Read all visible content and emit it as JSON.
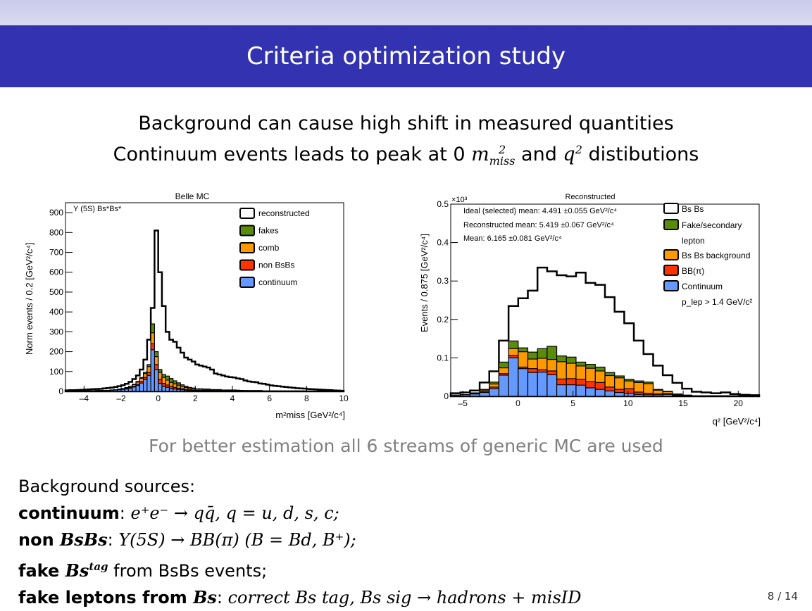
{
  "slide": {
    "title": "Criteria optimization study",
    "subtitle_line1": "Background can cause high shift in measured quantities",
    "subtitle_line2_a": "Continuum events leads to peak at 0 ",
    "subtitle_line2_math1": "m",
    "subtitle_line2_math1_sup": "2",
    "subtitle_line2_math1_sub": "miss",
    "subtitle_line2_b": " and ",
    "subtitle_line2_math2": "q",
    "subtitle_line2_math2_sup": "2",
    "subtitle_line2_c": " distibutions",
    "note": "For better estimation all 6 streams of generic MC are used",
    "page": "8 / 14",
    "background": {
      "heading": "Background sources:",
      "items": [
        {
          "label": "continuum",
          "text": "e⁺e⁻ → qq̄,  q = u, d, s, c;"
        },
        {
          "label": "non ",
          "label_math": "BsBs",
          "text": "Υ(5S) → BB(π) (B = Bd, B⁺);"
        },
        {
          "label": "fake ",
          "label_math": "Bs",
          "label_sup": "tag",
          "text": " from BsBs events;"
        },
        {
          "label": "fake leptons from ",
          "label_math": "Bs",
          "text": "correct Bs tag, Bs sig → hadrons + misID"
        }
      ]
    }
  },
  "chart_data": [
    {
      "type": "bar",
      "subtype": "stacked-histogram",
      "title": "Belle MC",
      "annotation": "Υ (5S) Bs*Bs*",
      "xlabel": "m²miss [GeV²/c⁴]",
      "ylabel": "Norm events / 0.2 [GeV²/c⁴]",
      "xlim": [
        -5,
        10
      ],
      "ylim": [
        0,
        950
      ],
      "bin_width": 0.2,
      "xticks": [
        -4,
        -2,
        0,
        2,
        4,
        6,
        8,
        10
      ],
      "yticks": [
        0,
        100,
        200,
        300,
        400,
        500,
        600,
        700,
        800,
        900
      ],
      "legend_position": "top-right",
      "legend": [
        "reconstructed",
        "fakes",
        "comb",
        "non BsBs",
        "continuum"
      ],
      "colors": {
        "reconstructed": "#ffffff",
        "fakes": "#5a8c0a",
        "comb": "#ff9900",
        "non BsBs": "#ff3300",
        "continuum": "#6699ff"
      },
      "bin_starts": [
        -5.0,
        -4.8,
        -4.6,
        -4.4,
        -4.2,
        -4.0,
        -3.8,
        -3.6,
        -3.4,
        -3.2,
        -3.0,
        -2.8,
        -2.6,
        -2.4,
        -2.2,
        -2.0,
        -1.8,
        -1.6,
        -1.4,
        -1.2,
        -1.0,
        -0.8,
        -0.6,
        -0.4,
        -0.2,
        0.0,
        0.2,
        0.4,
        0.6,
        0.8,
        1.0,
        1.2,
        1.4,
        1.6,
        1.8,
        2.0,
        2.2,
        2.4,
        2.6,
        2.8,
        3.0,
        3.2,
        3.4,
        3.6,
        3.8,
        4.0,
        4.2,
        4.4,
        4.6,
        4.8,
        5.0,
        5.2,
        5.4,
        5.6,
        5.8,
        6.0,
        6.2,
        6.4,
        6.6,
        6.8,
        7.0,
        7.2,
        7.4,
        7.6,
        7.8,
        8.0,
        8.2,
        8.4,
        8.6,
        8.8,
        9.0,
        9.2,
        9.4,
        9.6,
        9.8
      ],
      "series": [
        {
          "name": "continuum",
          "values": [
            2,
            2,
            2,
            2,
            3,
            3,
            3,
            3,
            4,
            4,
            5,
            5,
            6,
            7,
            8,
            10,
            12,
            16,
            22,
            30,
            42,
            60,
            80,
            210,
            110,
            40,
            25,
            20,
            15,
            12,
            10,
            8,
            6,
            5,
            4,
            3,
            3,
            3,
            3,
            2,
            2,
            2,
            2,
            2,
            2,
            2,
            1,
            1,
            1,
            1,
            1,
            1,
            1,
            1,
            1,
            1,
            1,
            1,
            1,
            1,
            1,
            1,
            1,
            1,
            1,
            1,
            1,
            1,
            1,
            1,
            0,
            0,
            0,
            0,
            0
          ]
        },
        {
          "name": "non BsBs",
          "values": [
            0,
            0,
            0,
            0,
            0,
            0,
            0,
            0,
            0,
            0,
            0,
            0,
            0,
            0,
            1,
            1,
            2,
            3,
            4,
            5,
            8,
            10,
            15,
            30,
            25,
            20,
            15,
            12,
            10,
            8,
            6,
            5,
            4,
            3,
            3,
            2,
            2,
            2,
            2,
            2,
            2,
            2,
            1,
            1,
            1,
            1,
            1,
            1,
            1,
            1,
            1,
            1,
            1,
            0,
            0,
            0,
            0,
            0,
            0,
            0,
            0,
            0,
            0,
            0,
            0,
            0,
            0,
            0,
            0,
            0,
            0,
            0,
            0,
            0,
            0
          ]
        },
        {
          "name": "comb",
          "values": [
            0,
            0,
            0,
            0,
            0,
            0,
            0,
            0,
            0,
            0,
            0,
            0,
            1,
            1,
            2,
            3,
            4,
            6,
            8,
            12,
            16,
            20,
            30,
            55,
            40,
            35,
            30,
            25,
            20,
            18,
            15,
            12,
            10,
            8,
            7,
            6,
            6,
            5,
            5,
            4,
            4,
            4,
            3,
            3,
            3,
            3,
            3,
            2,
            2,
            2,
            2,
            2,
            2,
            1,
            1,
            1,
            1,
            1,
            1,
            1,
            1,
            1,
            1,
            1,
            1,
            0,
            0,
            0,
            0,
            0,
            0,
            0,
            0,
            0,
            0,
            0
          ]
        },
        {
          "name": "fakes",
          "values": [
            0,
            0,
            0,
            0,
            0,
            0,
            0,
            0,
            0,
            0,
            0,
            0,
            0,
            0,
            0,
            0,
            1,
            1,
            2,
            3,
            4,
            6,
            10,
            45,
            25,
            15,
            15,
            20,
            20,
            15,
            12,
            8,
            6,
            4,
            3,
            2,
            2,
            2,
            2,
            1,
            1,
            1,
            1,
            1,
            1,
            1,
            1,
            1,
            0,
            0,
            0,
            0,
            0,
            0,
            0,
            0,
            0,
            0,
            0,
            0,
            0,
            0,
            0,
            0,
            0,
            0,
            0,
            0,
            0,
            0,
            0,
            0,
            0,
            0,
            0
          ]
        },
        {
          "name": "reconstructed",
          "values": [
            5,
            6,
            6,
            7,
            8,
            9,
            10,
            11,
            12,
            13,
            15,
            17,
            19,
            22,
            26,
            31,
            38,
            48,
            62,
            80,
            110,
            160,
            260,
            420,
            810,
            600,
            430,
            300,
            260,
            250,
            220,
            195,
            170,
            160,
            150,
            135,
            130,
            125,
            120,
            110,
            90,
            85,
            80,
            75,
            72,
            70,
            65,
            62,
            55,
            50,
            48,
            46,
            40,
            38,
            34,
            30,
            28,
            26,
            24,
            22,
            20,
            18,
            16,
            15,
            14,
            12,
            11,
            10,
            9,
            8,
            7,
            6,
            5,
            4,
            3
          ]
        }
      ]
    },
    {
      "type": "bar",
      "subtype": "stacked-histogram",
      "title": "Reconstructed",
      "xlabel": "q² [GeV²/c⁴]",
      "ylabel": "Events / 0.875 [GeV²/c⁴]",
      "y_multiplier": "×10³",
      "xlim": [
        -6.1,
        21.9
      ],
      "ylim": [
        0,
        0.5
      ],
      "bin_width": 0.875,
      "xticks": [
        -5,
        0,
        5,
        10,
        15,
        20
      ],
      "yticks": [
        0,
        0.1,
        0.2,
        0.3,
        0.4,
        0.5
      ],
      "stats": [
        "Ideal (selected) mean: 4.491 ±0.055 GeV²/c⁴",
        "Reconstructed mean: 5.419 ±0.067 GeV²/c⁴",
        "Mean: 6.165 ±0.081 GeV²/c⁴"
      ],
      "legend_position": "top-right",
      "legend": [
        "Bs Bs",
        "Fake/secondary lepton",
        "Bs Bs background",
        "BB(π)",
        "Continuum"
      ],
      "legend_note": "p_lep > 1.4 GeV/c²",
      "colors": {
        "Bs Bs": "#ffffff",
        "Fake/secondary lepton": "#5a8c0a",
        "Bs Bs background": "#ff9900",
        "BB(π)": "#ff3300",
        "Continuum": "#6699ff"
      },
      "bin_starts": [
        -6.1,
        -5.225,
        -4.35,
        -3.475,
        -2.6,
        -1.725,
        -0.85,
        0.025,
        0.9,
        1.775,
        2.65,
        3.525,
        4.4,
        5.275,
        6.15,
        7.025,
        7.9,
        8.775,
        9.65,
        10.525,
        11.4,
        12.275,
        13.15,
        14.025,
        14.9,
        15.775,
        16.65,
        17.525,
        18.4,
        19.275,
        20.15,
        21.025
      ],
      "series": [
        {
          "name": "Continuum",
          "values": [
            0.003,
            0.004,
            0.006,
            0.01,
            0.02,
            0.055,
            0.1,
            0.072,
            0.062,
            0.063,
            0.056,
            0.03,
            0.03,
            0.029,
            0.022,
            0.018,
            0.014,
            0.01,
            0.008,
            0.005,
            0.004,
            0.004,
            0.005,
            0.002,
            0.001,
            0.001,
            0.001,
            0.001,
            0.001,
            0.001,
            0.001,
            0.0
          ]
        },
        {
          "name": "BB(π)",
          "values": [
            0.0,
            0.0,
            0.001,
            0.002,
            0.004,
            0.004,
            0.006,
            0.004,
            0.01,
            0.006,
            0.01,
            0.015,
            0.016,
            0.015,
            0.016,
            0.018,
            0.01,
            0.008,
            0.012,
            0.006,
            0.004,
            0.002,
            0.002,
            0.001,
            0.001,
            0.0,
            0.0,
            0.0,
            0.0,
            0.0,
            0.0,
            0.0
          ]
        },
        {
          "name": "Bs Bs background",
          "values": [
            0.0,
            0.0,
            0.001,
            0.004,
            0.008,
            0.015,
            0.018,
            0.04,
            0.025,
            0.03,
            0.03,
            0.045,
            0.04,
            0.035,
            0.035,
            0.03,
            0.03,
            0.03,
            0.02,
            0.025,
            0.025,
            0.01,
            0.005,
            0.002,
            0.001,
            0.0,
            0.0,
            0.0,
            0.0,
            0.0,
            0.0,
            0.0
          ]
        },
        {
          "name": "Fake/secondary lepton",
          "values": [
            0.0,
            0.0,
            0.001,
            0.002,
            0.005,
            0.015,
            0.02,
            0.01,
            0.018,
            0.025,
            0.034,
            0.015,
            0.016,
            0.01,
            0.01,
            0.01,
            0.008,
            0.005,
            0.004,
            0.004,
            0.004,
            0.002,
            0.001,
            0.001,
            0.0,
            0.0,
            0.0,
            0.0,
            0.0,
            0.0,
            0.0,
            0.0
          ]
        },
        {
          "name": "Bs Bs",
          "values": [
            0.008,
            0.01,
            0.015,
            0.036,
            0.065,
            0.145,
            0.235,
            0.255,
            0.275,
            0.335,
            0.325,
            0.315,
            0.312,
            0.322,
            0.295,
            0.29,
            0.258,
            0.22,
            0.19,
            0.145,
            0.11,
            0.08,
            0.055,
            0.035,
            0.02,
            0.012,
            0.01,
            0.008,
            0.01,
            0.006,
            0.004,
            0.003
          ]
        }
      ]
    }
  ]
}
